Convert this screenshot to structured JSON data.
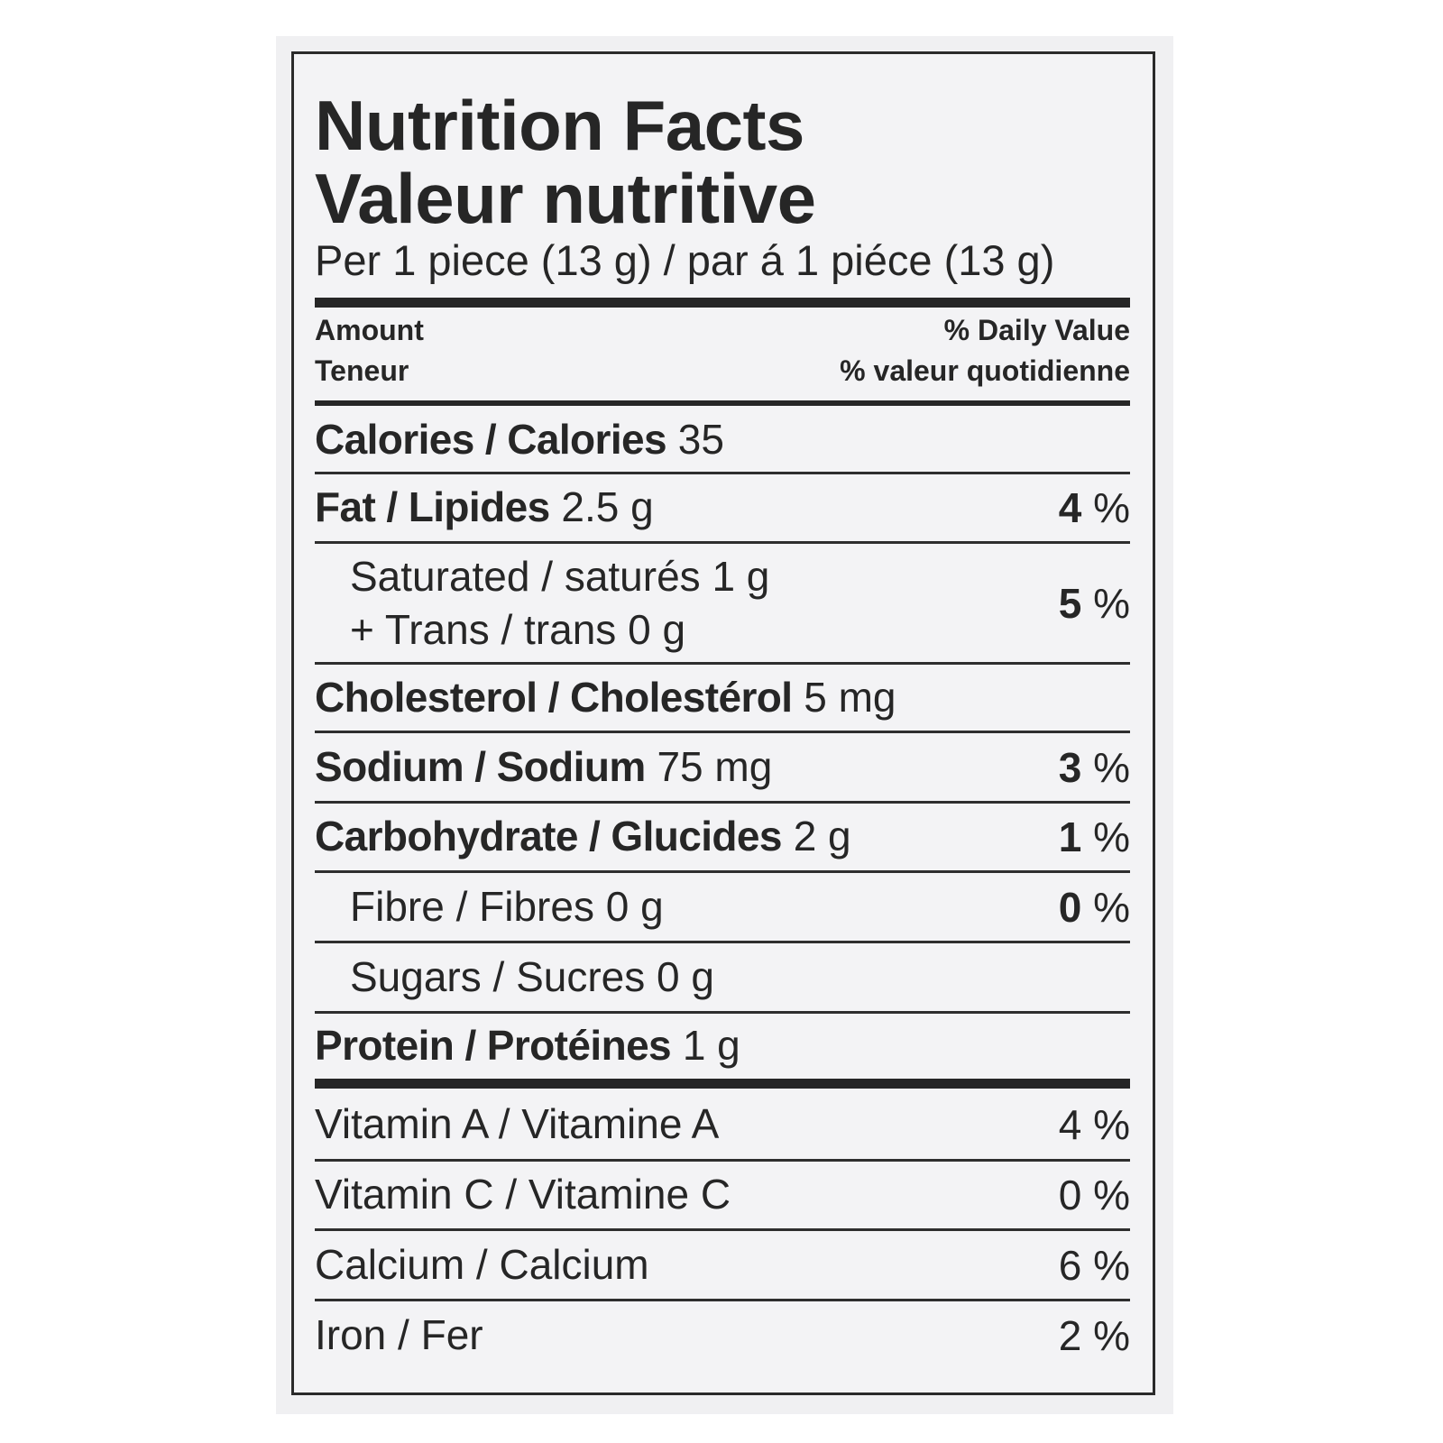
{
  "title_en": "Nutrition Facts",
  "title_fr": "Valeur nutritive",
  "serving": "Per 1 piece (13 g) / par á 1 piéce (13 g)",
  "header": {
    "amount_en": "Amount",
    "amount_fr": "Teneur",
    "dv_en": "% Daily Value",
    "dv_fr": "% valeur quotidienne"
  },
  "calories": {
    "label": "Calories / Calories",
    "value": "35"
  },
  "fat": {
    "label": "Fat / Lipides",
    "value": "2.5 g",
    "dv": "4",
    "unit": "%"
  },
  "saturated": {
    "line1": "Saturated / saturés 1 g",
    "line2": "+ Trans / trans 0 g",
    "dv": "5",
    "unit": "%"
  },
  "cholesterol": {
    "label": "Cholesterol / Cholestérol",
    "value": "5 mg"
  },
  "sodium": {
    "label": "Sodium / Sodium",
    "value": "75 mg",
    "dv": "3",
    "unit": "%"
  },
  "carbohydrate": {
    "label": "Carbohydrate / Glucides",
    "value": "2 g",
    "dv": "1",
    "unit": "%"
  },
  "fibre": {
    "label": "Fibre / Fibres 0 g",
    "dv": "0",
    "unit": "%"
  },
  "sugars": {
    "label": "Sugars / Sucres 0 g"
  },
  "protein": {
    "label": "Protein / Protéines",
    "value": "1 g"
  },
  "vitamins": [
    {
      "label": "Vitamin A / Vitamine A",
      "dv": "4 %"
    },
    {
      "label": "Vitamin C / Vitamine C",
      "dv": "0 %"
    },
    {
      "label": "Calcium / Calcium",
      "dv": "6 %"
    },
    {
      "label": "Iron / Fer",
      "dv": "2 %"
    }
  ]
}
